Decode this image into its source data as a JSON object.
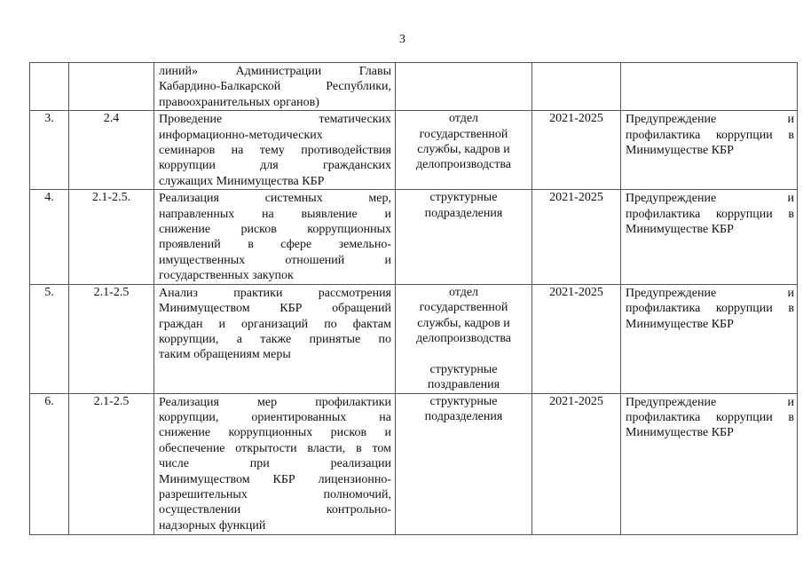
{
  "page_number": "3",
  "rows": [
    {
      "num": "",
      "ref": "",
      "measure": [
        "линий»  Администрации  Главы",
        "Кабардино-Балкарской  Республики,",
        "правоохранительных органов)"
      ],
      "responsible": [],
      "period": "",
      "result": []
    },
    {
      "num": "3.",
      "ref": "2.4",
      "measure": [
        "Проведение тематических",
        "информационно-методических",
        "семинаров на тему противодействия",
        "коррупции для гражданских",
        "служащих Минимущества КБР"
      ],
      "responsible": [
        "отдел",
        "государственной",
        "службы, кадров и",
        "делопроизводства"
      ],
      "period": "2021-2025",
      "result": [
        "Предупреждение и",
        "профилактика коррупции в",
        "Минимуществе КБР"
      ]
    },
    {
      "num": "4.",
      "ref": "2.1-2.5.",
      "measure": [
        "Реализация системных мер,",
        "направленных на выявление и",
        "снижение рисков коррупционных",
        "проявлений в сфере земельно-",
        "имущественных отношений и",
        "государственных закупок"
      ],
      "responsible": [
        "структурные",
        "подразделения"
      ],
      "period": "2021-2025",
      "result": [
        "Предупреждение и",
        "профилактика коррупции в",
        "Минимуществе КБР"
      ]
    },
    {
      "num": "5.",
      "ref": "2.1-2.5",
      "measure": [
        "Анализ практики рассмотрения",
        "Минимуществом КБР обращений",
        "граждан и организаций по фактам",
        "коррупции, а также принятые по",
        "таким обращениям меры"
      ],
      "responsible": [
        "отдел",
        "государственной",
        "службы, кадров и",
        "делопроизводства",
        "",
        "структурные",
        "поздравления"
      ],
      "period": "2021-2025",
      "result": [
        "Предупреждение и",
        "профилактика коррупции в",
        "Минимуществе КБР"
      ]
    },
    {
      "num": "6.",
      "ref": "2.1-2.5",
      "measure": [
        "Реализация мер профилактики",
        "коррупции, ориентированных на",
        "снижение коррупционных рисков и",
        "обеспечение открытости власти, в том",
        "числе при реализации",
        "Минимуществом КБР лицензионно-",
        "разрешительных полномочий,",
        "осуществлении контрольно-",
        "надзорных функций"
      ],
      "responsible": [
        "структурные",
        "подразделения"
      ],
      "period": "2021-2025",
      "result": [
        "Предупреждение и",
        "профилактика коррупции в",
        "Минимуществе КБР"
      ]
    }
  ]
}
